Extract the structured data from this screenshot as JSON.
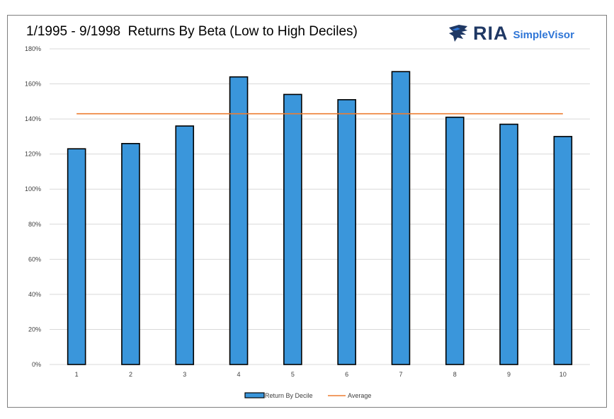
{
  "chart_data": {
    "type": "bar",
    "title": "1/1995 - 9/1998  Returns By Beta (Low to High Deciles)",
    "categories": [
      "1",
      "2",
      "3",
      "4",
      "5",
      "6",
      "7",
      "8",
      "9",
      "10"
    ],
    "series": [
      {
        "name": "Return By Decile",
        "type": "bar",
        "values": [
          123,
          126,
          136,
          164,
          154,
          151,
          167,
          141,
          137,
          130
        ],
        "color": "#3a96db"
      },
      {
        "name": "Average",
        "type": "line",
        "values": [
          143,
          143,
          143,
          143,
          143,
          143,
          143,
          143,
          143,
          143
        ],
        "color": "#ed7d31"
      }
    ],
    "ylim": [
      0,
      180
    ],
    "yticks": [
      "0%",
      "20%",
      "40%",
      "60%",
      "80%",
      "100%",
      "120%",
      "140%",
      "160%",
      "180%"
    ],
    "y_unit": "%",
    "grid": true,
    "legend_position": "bottom"
  },
  "branding": {
    "logo_main": "RIA",
    "logo_sub": "SimpleVisor",
    "logo_icon": "eagle-head-icon",
    "brand_color": "#1f3864",
    "brand_accent": "#2e75d6"
  }
}
